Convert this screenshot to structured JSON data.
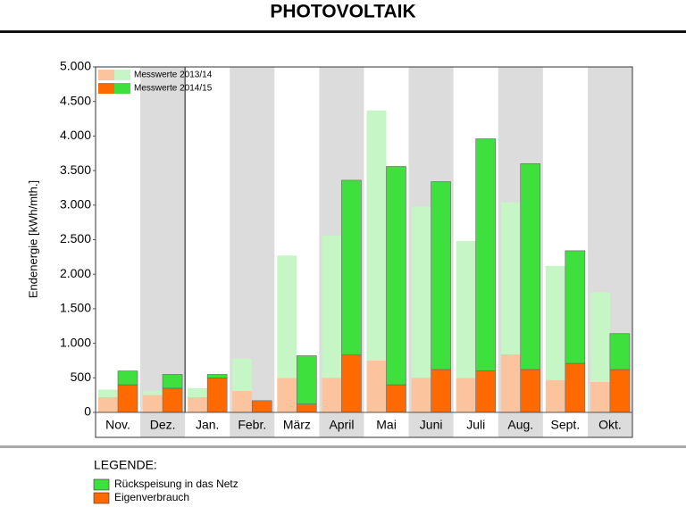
{
  "chart_data": {
    "type": "grouped_stacked_bar",
    "title": "PHOTOVOLTAIK",
    "y_label": "Endenergie [kWh/mth.]",
    "categories": [
      "Nov.",
      "Dez.",
      "Jan.",
      "Febr.",
      "März",
      "April",
      "Mai",
      "Juni",
      "Juli",
      "Aug.",
      "Sept.",
      "Okt."
    ],
    "ylim": [
      0,
      5000
    ],
    "yticks": [
      0,
      500,
      {
        "value": 1000,
        "label": "1.000"
      },
      {
        "value": 1500,
        "label": "1.500"
      },
      {
        "value": 2000,
        "label": "2.000"
      },
      {
        "value": 2500,
        "label": "2.500"
      },
      {
        "value": 3000,
        "label": "3.000"
      },
      {
        "value": 3500,
        "label": "3.500"
      },
      {
        "value": 4000,
        "label": "4.000"
      },
      {
        "value": 4500,
        "label": "4.500"
      },
      {
        "value": 5000,
        "label": "5.000"
      }
    ],
    "legend_title": "LEGENDE:",
    "segments": [
      {
        "name": "Eigenverbrauch",
        "color": "#ff6a00"
      },
      {
        "name": "Rückspeisung in das Netz",
        "color": "#3ee03e"
      }
    ],
    "groups": [
      {
        "name": "Messwerte 2013/14",
        "series": [
          {
            "color": "#fbc49e",
            "values": [
              220,
              250,
              220,
              310,
              500,
              500,
              750,
              500,
              500,
              840,
              470,
              440
            ]
          },
          {
            "color": "#c6f6c6",
            "values": [
              110,
              60,
              130,
              470,
              1770,
              2060,
              3620,
              2480,
              1980,
              2200,
              1650,
              1300
            ]
          }
        ]
      },
      {
        "name": "Messwerte 2014/15",
        "series": [
          {
            "color": "#ff6a00",
            "values": [
              400,
              350,
              500,
              170,
              120,
              830,
              400,
              620,
              600,
              620,
              710,
              620
            ]
          },
          {
            "color": "#3ee03e",
            "values": [
              200,
              200,
              50,
              0,
              700,
              2530,
              3160,
              2720,
              3360,
              2980,
              1630,
              520
            ]
          }
        ]
      }
    ]
  }
}
